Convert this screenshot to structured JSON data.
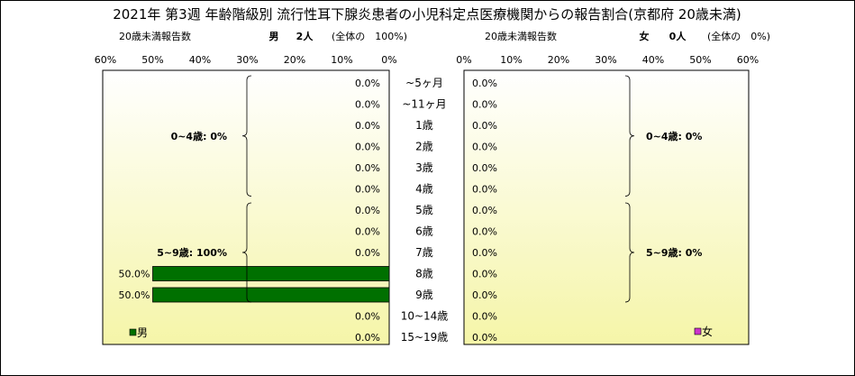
{
  "title": "2021年 第3週 年齢階級別 流行性耳下腺炎患者の小児科定点医療機関からの報告割合(京都府 20歳未満)",
  "left_header": {
    "under20_label": "20歳未満報告数",
    "sex_label": "男",
    "count_text": "2人",
    "share_text": "(全体の　100%)"
  },
  "right_header": {
    "under20_label": "20歳未満報告数",
    "sex_label": "女",
    "count_text": "0人",
    "share_text": "(全体の　0%)"
  },
  "chart_data": {
    "type": "bar",
    "orientation": "horizontal-pyramid",
    "categories": [
      "~5ヶ月",
      "~11ヶ月",
      "1歳",
      "2歳",
      "3歳",
      "4歳",
      "5歳",
      "6歳",
      "7歳",
      "8歳",
      "9歳",
      "10~14歳",
      "15~19歳"
    ],
    "series": [
      {
        "name": "男",
        "values": [
          0,
          0,
          0,
          0,
          0,
          0,
          0,
          0,
          0,
          50,
          50,
          0,
          0
        ],
        "labels": [
          "0.0%",
          "0.0%",
          "0.0%",
          "0.0%",
          "0.0%",
          "0.0%",
          "0.0%",
          "0.0%",
          "0.0%",
          "50.0%",
          "50.0%",
          "0.0%",
          "0.0%"
        ],
        "color": "#007000"
      },
      {
        "name": "女",
        "values": [
          0,
          0,
          0,
          0,
          0,
          0,
          0,
          0,
          0,
          0,
          0,
          0,
          0
        ],
        "labels": [
          "0.0%",
          "0.0%",
          "0.0%",
          "0.0%",
          "0.0%",
          "0.0%",
          "0.0%",
          "0.0%",
          "0.0%",
          "0.0%",
          "0.0%",
          "0.0%",
          "0.0%"
        ],
        "color": "#cc33cc"
      }
    ],
    "axis_ticks": [
      "0%",
      "10%",
      "20%",
      "30%",
      "40%",
      "50%",
      "60%"
    ],
    "xlim": [
      0,
      60
    ],
    "groups": {
      "left": [
        {
          "label": "0~4歳: 0%",
          "from": 0,
          "to": 5
        },
        {
          "label": "5~9歳: 100%",
          "from": 6,
          "to": 10
        }
      ],
      "right": [
        {
          "label": "0~4歳: 0%",
          "from": 0,
          "to": 5
        },
        {
          "label": "5~9歳: 0%",
          "from": 6,
          "to": 10
        }
      ]
    },
    "legend": {
      "left": "男",
      "right": "女"
    },
    "background": {
      "top": "#ffffff",
      "bottom": "#f5f5a8"
    }
  }
}
